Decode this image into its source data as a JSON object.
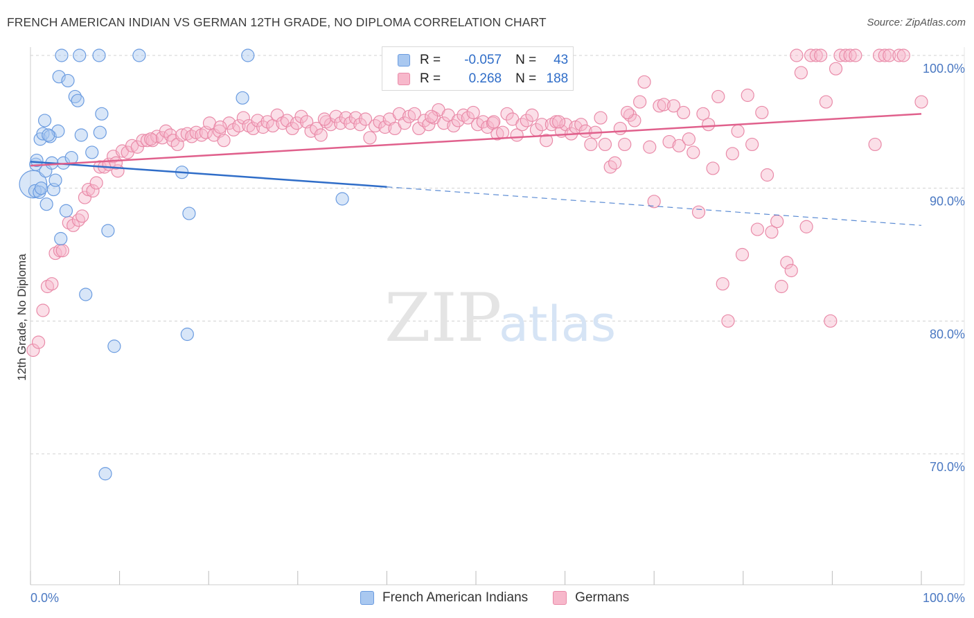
{
  "header": {
    "title": "FRENCH AMERICAN INDIAN VS GERMAN 12TH GRADE, NO DIPLOMA CORRELATION CHART",
    "source": "Source: ZipAtlas.com"
  },
  "watermark": {
    "zip": "ZIP",
    "atlas": "atlas"
  },
  "legend": {
    "rows": [
      {
        "r_label": "R =",
        "r_value": "-0.057",
        "n_label": "N =",
        "n_value": "43",
        "color": "#a9c8f0",
        "stroke": "#6a9be0"
      },
      {
        "r_label": "R =",
        "r_value": "0.268",
        "n_label": "N =",
        "n_value": "188",
        "color": "#f7b8cb",
        "stroke": "#e98aa8"
      }
    ]
  },
  "bottom_legend": {
    "items": [
      {
        "label": "French American Indians",
        "color": "#a9c8f0",
        "stroke": "#6a9be0"
      },
      {
        "label": "Germans",
        "color": "#f7b8cb",
        "stroke": "#e98aa8"
      }
    ]
  },
  "colors": {
    "blue": "#2f6dc8",
    "pink": "#e0608c",
    "grid": "#d0d0d0"
  },
  "chart_data": {
    "type": "scatter",
    "title": "FRENCH AMERICAN INDIAN VS GERMAN 12TH GRADE, NO DIPLOMA CORRELATION CHART",
    "xlabel": "",
    "ylabel": "12th Grade, No Diploma",
    "xlim": [
      0,
      100
    ],
    "ylim": [
      60,
      103
    ],
    "y_ticks": [
      70,
      80,
      90,
      100
    ],
    "y_tick_labels": [
      "70.0%",
      "80.0%",
      "90.0%",
      "100.0%"
    ],
    "x_tick_labels": [
      "0.0%",
      "100.0%"
    ],
    "grid": true,
    "legend_position": "top-center",
    "series": [
      {
        "name": "French American Indians",
        "trend": {
          "x0": 0,
          "y0": 92.0,
          "x1": 40,
          "y1": 90.1,
          "dashed_to_x": 100,
          "dashed_to_y": 87.2
        },
        "points": [
          [
            0.3,
            90.3,
            2.2
          ],
          [
            0.5,
            89.8,
            1.0
          ],
          [
            0.6,
            91.8,
            1.0
          ],
          [
            0.7,
            92.1,
            1.0
          ],
          [
            1.0,
            89.7,
            1.0
          ],
          [
            1.1,
            93.7,
            1.0
          ],
          [
            1.4,
            94.1,
            1.0
          ],
          [
            1.6,
            95.1,
            1.0
          ],
          [
            1.7,
            91.3,
            1.0
          ],
          [
            1.8,
            88.8,
            1.0
          ],
          [
            2.2,
            93.9,
            1.0
          ],
          [
            2.4,
            91.9,
            1.0
          ],
          [
            2.6,
            89.9,
            1.0
          ],
          [
            2.8,
            90.6,
            1.0
          ],
          [
            3.1,
            94.3,
            1.0
          ],
          [
            3.2,
            98.4,
            1.0
          ],
          [
            3.4,
            86.2,
            1.0
          ],
          [
            3.7,
            91.9,
            1.0
          ],
          [
            4.0,
            88.3,
            1.0
          ],
          [
            4.2,
            98.1,
            1.0
          ],
          [
            4.6,
            92.3,
            1.0
          ],
          [
            5.0,
            96.9,
            1.0
          ],
          [
            5.3,
            96.6,
            1.0
          ],
          [
            5.7,
            94.0,
            1.0
          ],
          [
            6.2,
            82.0,
            1.0
          ],
          [
            6.9,
            92.7,
            1.0
          ],
          [
            7.8,
            94.2,
            1.0
          ],
          [
            8.0,
            95.6,
            1.0
          ],
          [
            8.4,
            68.5,
            1.0
          ],
          [
            8.7,
            86.8,
            1.0
          ],
          [
            9.4,
            78.1,
            1.0
          ],
          [
            3.5,
            100.0,
            1.0
          ],
          [
            5.5,
            100.0,
            1.0
          ],
          [
            7.7,
            100.0,
            1.0
          ],
          [
            12.2,
            100.0,
            1.0
          ],
          [
            17.0,
            91.2,
            1.0
          ],
          [
            17.6,
            79.0,
            1.0
          ],
          [
            17.8,
            88.1,
            1.0
          ],
          [
            23.8,
            96.8,
            1.0
          ],
          [
            24.4,
            100.0,
            1.0
          ],
          [
            35.0,
            89.2,
            1.0
          ],
          [
            1.2,
            90.0,
            1.0
          ],
          [
            2.0,
            94.0,
            1.0
          ]
        ]
      },
      {
        "name": "Germans",
        "trend": {
          "x0": 0,
          "y0": 91.7,
          "x1": 100,
          "y1": 95.6
        },
        "points": [
          [
            0.3,
            77.8,
            1.0
          ],
          [
            0.9,
            78.4,
            1.0
          ],
          [
            1.4,
            80.8,
            1.0
          ],
          [
            1.9,
            82.6,
            1.0
          ],
          [
            2.4,
            82.8,
            1.0
          ],
          [
            2.8,
            85.1,
            1.0
          ],
          [
            3.3,
            85.3,
            1.0
          ],
          [
            3.6,
            85.3,
            1.0
          ],
          [
            4.3,
            87.4,
            1.0
          ],
          [
            4.8,
            87.2,
            1.0
          ],
          [
            5.4,
            87.6,
            1.0
          ],
          [
            5.8,
            87.9,
            1.0
          ],
          [
            6.1,
            89.3,
            1.0
          ],
          [
            6.5,
            89.9,
            1.0
          ],
          [
            7.0,
            89.8,
            1.0
          ],
          [
            7.4,
            90.4,
            1.0
          ],
          [
            7.8,
            91.6,
            1.0
          ],
          [
            8.3,
            91.6,
            1.0
          ],
          [
            8.8,
            91.8,
            1.0
          ],
          [
            9.3,
            92.4,
            1.0
          ],
          [
            9.8,
            91.3,
            1.0
          ],
          [
            10.3,
            92.8,
            1.0
          ],
          [
            10.9,
            92.7,
            1.0
          ],
          [
            11.4,
            93.2,
            1.0
          ],
          [
            12.0,
            93.1,
            1.0
          ],
          [
            12.6,
            93.6,
            1.0
          ],
          [
            13.1,
            93.6,
            1.0
          ],
          [
            13.7,
            93.6,
            1.0
          ],
          [
            14.2,
            93.9,
            1.0
          ],
          [
            14.8,
            93.8,
            1.0
          ],
          [
            15.2,
            94.3,
            1.0
          ],
          [
            15.7,
            94.0,
            1.0
          ],
          [
            16.0,
            93.6,
            1.0
          ],
          [
            16.5,
            93.3,
            1.0
          ],
          [
            17.0,
            94.0,
            1.0
          ],
          [
            17.6,
            94.1,
            1.0
          ],
          [
            18.1,
            93.9,
            1.0
          ],
          [
            18.6,
            94.2,
            1.0
          ],
          [
            19.2,
            94.0,
            1.0
          ],
          [
            19.7,
            94.2,
            1.0
          ],
          [
            20.1,
            94.9,
            1.0
          ],
          [
            20.6,
            94.0,
            1.0
          ],
          [
            21.2,
            94.3,
            1.0
          ],
          [
            21.7,
            93.6,
            1.0
          ],
          [
            22.3,
            94.9,
            1.0
          ],
          [
            22.8,
            94.4,
            1.0
          ],
          [
            23.4,
            94.7,
            1.0
          ],
          [
            23.9,
            95.3,
            1.0
          ],
          [
            24.5,
            94.7,
            1.0
          ],
          [
            25.0,
            94.5,
            1.0
          ],
          [
            25.5,
            95.1,
            1.0
          ],
          [
            26.1,
            94.6,
            1.0
          ],
          [
            26.6,
            95.0,
            1.0
          ],
          [
            27.2,
            94.7,
            1.0
          ],
          [
            27.7,
            95.5,
            1.0
          ],
          [
            28.3,
            94.9,
            1.0
          ],
          [
            28.8,
            95.1,
            1.0
          ],
          [
            29.4,
            94.5,
            1.0
          ],
          [
            29.9,
            94.9,
            1.0
          ],
          [
            30.4,
            95.4,
            1.0
          ],
          [
            31.0,
            95.0,
            1.0
          ],
          [
            31.5,
            94.3,
            1.0
          ],
          [
            32.1,
            94.5,
            1.0
          ],
          [
            32.6,
            94.0,
            1.0
          ],
          [
            33.2,
            95.0,
            1.0
          ],
          [
            33.7,
            94.8,
            1.0
          ],
          [
            34.3,
            95.4,
            1.0
          ],
          [
            34.8,
            94.9,
            1.0
          ],
          [
            35.4,
            95.3,
            1.0
          ],
          [
            35.9,
            94.9,
            1.0
          ],
          [
            36.5,
            95.3,
            1.0
          ],
          [
            37.0,
            94.8,
            1.0
          ],
          [
            37.6,
            95.2,
            1.0
          ],
          [
            38.1,
            93.8,
            1.0
          ],
          [
            38.7,
            94.7,
            1.0
          ],
          [
            39.2,
            95.0,
            1.0
          ],
          [
            39.8,
            94.6,
            1.0
          ],
          [
            40.3,
            95.2,
            1.0
          ],
          [
            40.9,
            94.5,
            1.0
          ],
          [
            41.4,
            95.6,
            1.0
          ],
          [
            42.0,
            94.9,
            1.0
          ],
          [
            42.5,
            95.4,
            1.0
          ],
          [
            43.1,
            95.6,
            1.0
          ],
          [
            43.6,
            94.5,
            1.0
          ],
          [
            44.2,
            95.1,
            1.0
          ],
          [
            44.7,
            94.8,
            1.0
          ],
          [
            45.3,
            95.3,
            1.0
          ],
          [
            45.8,
            95.9,
            1.0
          ],
          [
            46.4,
            94.9,
            1.0
          ],
          [
            46.9,
            95.5,
            1.0
          ],
          [
            47.5,
            94.7,
            1.0
          ],
          [
            48.0,
            95.1,
            1.0
          ],
          [
            48.6,
            95.5,
            1.0
          ],
          [
            49.1,
            95.3,
            1.0
          ],
          [
            49.7,
            95.7,
            1.0
          ],
          [
            50.2,
            94.8,
            1.0
          ],
          [
            50.8,
            95.0,
            1.0
          ],
          [
            51.3,
            94.6,
            1.0
          ],
          [
            51.9,
            94.9,
            1.0
          ],
          [
            52.4,
            94.1,
            1.0
          ],
          [
            53.0,
            94.2,
            1.0
          ],
          [
            53.5,
            95.6,
            1.0
          ],
          [
            54.1,
            95.2,
            1.0
          ],
          [
            54.6,
            94.0,
            1.0
          ],
          [
            55.2,
            94.8,
            1.0
          ],
          [
            55.7,
            95.1,
            1.0
          ],
          [
            56.3,
            95.5,
            1.0
          ],
          [
            56.8,
            94.4,
            1.0
          ],
          [
            57.4,
            94.8,
            1.0
          ],
          [
            57.9,
            93.6,
            1.0
          ],
          [
            58.5,
            94.8,
            1.0
          ],
          [
            59.0,
            95.0,
            1.0
          ],
          [
            59.6,
            94.3,
            1.0
          ],
          [
            60.1,
            94.8,
            1.0
          ],
          [
            60.7,
            94.1,
            1.0
          ],
          [
            61.2,
            94.6,
            1.0
          ],
          [
            61.8,
            94.8,
            1.0
          ],
          [
            62.3,
            94.3,
            1.0
          ],
          [
            62.9,
            93.3,
            1.0
          ],
          [
            63.4,
            94.2,
            1.0
          ],
          [
            64.0,
            95.3,
            1.0
          ],
          [
            64.5,
            93.3,
            1.0
          ],
          [
            65.1,
            91.6,
            1.0
          ],
          [
            65.6,
            91.9,
            1.0
          ],
          [
            66.2,
            94.5,
            1.0
          ],
          [
            66.7,
            93.3,
            1.0
          ],
          [
            67.3,
            95.5,
            1.0
          ],
          [
            67.8,
            95.1,
            1.0
          ],
          [
            68.4,
            96.5,
            1.0
          ],
          [
            68.9,
            98.0,
            1.0
          ],
          [
            69.5,
            93.1,
            1.0
          ],
          [
            70.0,
            89.0,
            1.0
          ],
          [
            70.6,
            96.2,
            1.0
          ],
          [
            71.1,
            96.3,
            1.0
          ],
          [
            71.7,
            93.5,
            1.0
          ],
          [
            72.2,
            96.2,
            1.0
          ],
          [
            72.8,
            93.2,
            1.0
          ],
          [
            73.3,
            95.7,
            1.0
          ],
          [
            73.9,
            93.7,
            1.0
          ],
          [
            74.4,
            92.7,
            1.0
          ],
          [
            75.0,
            88.2,
            1.0
          ],
          [
            75.5,
            95.6,
            1.0
          ],
          [
            76.1,
            94.8,
            1.0
          ],
          [
            76.6,
            91.5,
            1.0
          ],
          [
            77.2,
            96.9,
            1.0
          ],
          [
            77.7,
            82.8,
            1.0
          ],
          [
            78.3,
            80.0,
            1.0
          ],
          [
            78.8,
            92.6,
            1.0
          ],
          [
            79.4,
            94.3,
            1.0
          ],
          [
            79.9,
            85.0,
            1.0
          ],
          [
            80.5,
            97.0,
            1.0
          ],
          [
            81.0,
            93.3,
            1.0
          ],
          [
            81.6,
            86.9,
            1.0
          ],
          [
            82.1,
            95.7,
            1.0
          ],
          [
            82.7,
            91.0,
            1.0
          ],
          [
            83.2,
            86.7,
            1.0
          ],
          [
            83.8,
            87.5,
            1.0
          ],
          [
            84.3,
            82.6,
            1.0
          ],
          [
            84.9,
            84.4,
            1.0
          ],
          [
            85.4,
            83.8,
            1.0
          ],
          [
            86.0,
            100.0,
            1.0
          ],
          [
            86.5,
            98.7,
            1.0
          ],
          [
            87.1,
            87.1,
            1.0
          ],
          [
            87.6,
            100.0,
            1.0
          ],
          [
            88.2,
            100.0,
            1.0
          ],
          [
            88.7,
            100.0,
            1.0
          ],
          [
            89.3,
            96.5,
            1.0
          ],
          [
            89.8,
            80.0,
            1.0
          ],
          [
            90.4,
            99.0,
            1.0
          ],
          [
            90.9,
            100.0,
            1.0
          ],
          [
            91.5,
            100.0,
            1.0
          ],
          [
            92.0,
            100.0,
            1.0
          ],
          [
            92.6,
            100.0,
            1.0
          ],
          [
            94.8,
            93.3,
            1.0
          ],
          [
            95.3,
            100.0,
            1.0
          ],
          [
            95.9,
            100.0,
            1.0
          ],
          [
            96.4,
            100.0,
            1.0
          ],
          [
            97.5,
            100.0,
            1.0
          ],
          [
            98.0,
            100.0,
            1.0
          ],
          [
            100.0,
            96.5,
            1.0
          ],
          [
            9.6,
            91.9,
            1.0
          ],
          [
            13.5,
            93.7,
            1.0
          ],
          [
            21.3,
            94.6,
            1.0
          ],
          [
            33.0,
            95.2,
            1.0
          ],
          [
            45.0,
            95.4,
            1.0
          ],
          [
            52.0,
            95.0,
            1.0
          ],
          [
            59.3,
            95.0,
            1.0
          ],
          [
            67.0,
            95.7,
            1.0
          ]
        ]
      }
    ]
  }
}
